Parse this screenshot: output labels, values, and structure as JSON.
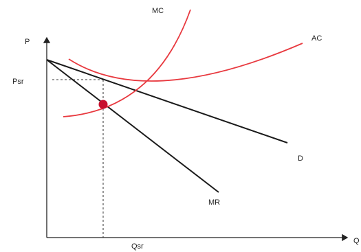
{
  "labels": {
    "y_axis": "P",
    "x_axis": "Q",
    "price_tick": "Psr",
    "quantity_tick": "Qsr"
  },
  "curves": {
    "mc": "MC",
    "ac": "AC",
    "demand": "D",
    "mr": "MR"
  },
  "colors": {
    "cost_curves": "#e8393f",
    "revenue_curves": "#1a1a1a",
    "equilibrium_point": "#c8102e",
    "axes": "#222222",
    "guides": "#333333"
  }
}
